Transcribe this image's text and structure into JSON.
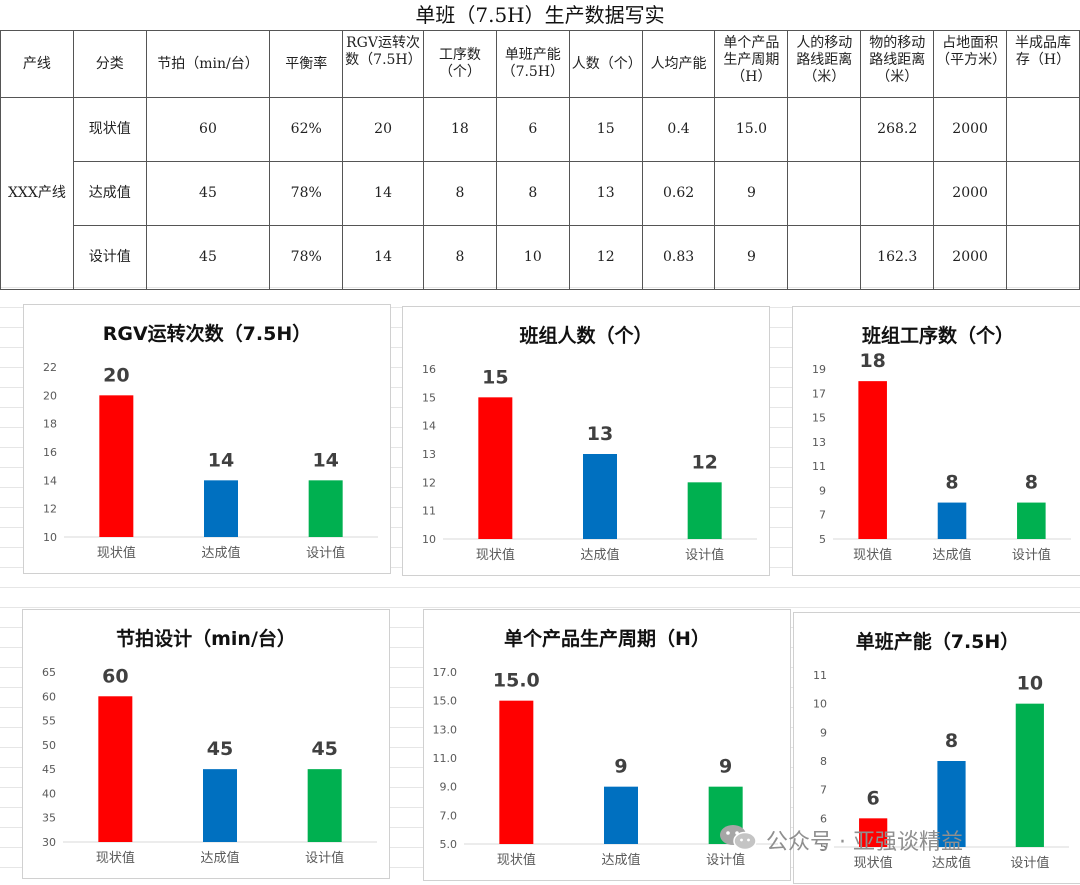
{
  "sheet_title": "单班（7.5H）生产数据写实",
  "table": {
    "headers": [
      "产线",
      "分类",
      "节拍（min/台）",
      "平衡率",
      "RGV运转次数（7.5H）",
      "工序数（个）",
      "单班产能（7.5H）",
      "人数（个）",
      "人均产能",
      "单个产品生产周期（H）",
      "人的移动路线距离（米）",
      "物的移动路线距离（米）",
      "占地面积（平方米）",
      "半成品库存（H）"
    ],
    "line_name": "XXX产线",
    "rows": [
      [
        "现状值",
        "60",
        "62%",
        "20",
        "18",
        "6",
        "15",
        "0.4",
        "15.0",
        "",
        "268.2",
        "2000",
        ""
      ],
      [
        "达成值",
        "45",
        "78%",
        "14",
        "8",
        "8",
        "13",
        "0.62",
        "9",
        "",
        "",
        "2000",
        ""
      ],
      [
        "设计值",
        "45",
        "78%",
        "14",
        "8",
        "10",
        "12",
        "0.83",
        "9",
        "",
        "162.3",
        "2000",
        ""
      ]
    ]
  },
  "colors": {
    "current": "#FF0000",
    "achieved": "#0070C0",
    "design": "#00B050"
  },
  "chart_data": [
    {
      "type": "bar",
      "title": "RGV运转次数（7.5H）",
      "categories": [
        "现状值",
        "达成值",
        "设计值"
      ],
      "values": [
        20,
        14,
        14
      ],
      "data_labels": [
        "20",
        "14",
        "14"
      ],
      "yticks": [
        "10",
        "12",
        "14",
        "16",
        "18",
        "20",
        "22"
      ],
      "ylim": [
        10,
        22
      ],
      "xlabel": "",
      "ylabel": ""
    },
    {
      "type": "bar",
      "title": "班组人数（个）",
      "categories": [
        "现状值",
        "达成值",
        "设计值"
      ],
      "values": [
        15,
        13,
        12
      ],
      "data_labels": [
        "15",
        "13",
        "12"
      ],
      "yticks": [
        "10",
        "11",
        "12",
        "13",
        "14",
        "15",
        "16"
      ],
      "ylim": [
        10,
        16
      ],
      "xlabel": "",
      "ylabel": ""
    },
    {
      "type": "bar",
      "title": "班组工序数（个）",
      "categories": [
        "现状值",
        "达成值",
        "设计值"
      ],
      "values": [
        18,
        8,
        8
      ],
      "data_labels": [
        "18",
        "8",
        "8"
      ],
      "yticks": [
        "5",
        "7",
        "9",
        "11",
        "13",
        "15",
        "17",
        "19"
      ],
      "ylim": [
        5,
        19
      ],
      "xlabel": "",
      "ylabel": ""
    },
    {
      "type": "bar",
      "title": "节拍设计（min/台）",
      "categories": [
        "现状值",
        "达成值",
        "设计值"
      ],
      "values": [
        60,
        45,
        45
      ],
      "data_labels": [
        "60",
        "45",
        "45"
      ],
      "yticks": [
        "30",
        "35",
        "40",
        "45",
        "50",
        "55",
        "60",
        "65"
      ],
      "ylim": [
        30,
        65
      ],
      "xlabel": "",
      "ylabel": ""
    },
    {
      "type": "bar",
      "title": "单个产品生产周期（H）",
      "categories": [
        "现状值",
        "达成值",
        "设计值"
      ],
      "values": [
        15,
        9,
        9
      ],
      "data_labels": [
        "15.0",
        "9",
        "9"
      ],
      "yticks": [
        "5.0",
        "7.0",
        "9.0",
        "11.0",
        "13.0",
        "15.0",
        "17.0"
      ],
      "ylim": [
        5,
        17
      ],
      "xlabel": "",
      "ylabel": ""
    },
    {
      "type": "bar",
      "title": "单班产能（7.5H）",
      "categories": [
        "现状值",
        "达成值",
        "设计值"
      ],
      "values": [
        6,
        8,
        10
      ],
      "data_labels": [
        "6",
        "8",
        "10"
      ],
      "yticks": [
        "5",
        "6",
        "7",
        "8",
        "9",
        "10",
        "11"
      ],
      "ylim": [
        5,
        11
      ],
      "xlabel": "",
      "ylabel": ""
    }
  ],
  "watermark": {
    "text": "公众号 · 亚强谈精益",
    "icon": "wechat-icon"
  }
}
